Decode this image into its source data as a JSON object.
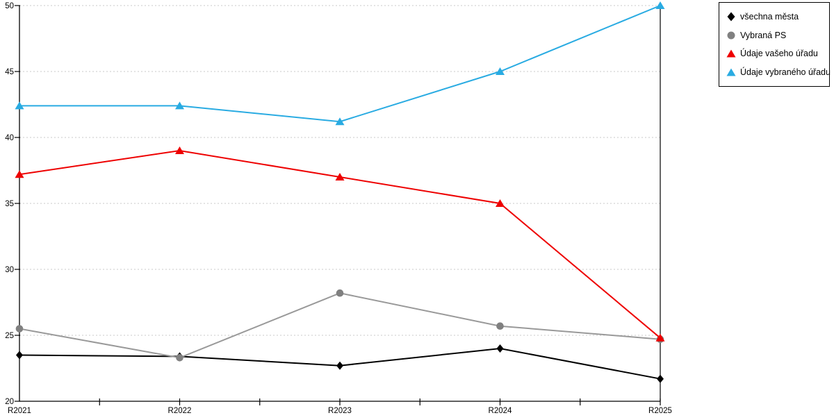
{
  "chart_data": {
    "type": "line",
    "categories": [
      "R2021",
      "R2022",
      "R2023",
      "R2024",
      "R2025"
    ],
    "series": [
      {
        "name": "všechna města",
        "line_color": "#000000",
        "marker": "diamond",
        "marker_color": "#000000",
        "values": [
          23.5,
          23.4,
          22.7,
          24.0,
          21.7
        ]
      },
      {
        "name": "Vybraná PS",
        "line_color": "#999999",
        "marker": "circle",
        "marker_color": "#808080",
        "values": [
          25.5,
          23.3,
          28.2,
          25.7,
          24.7
        ]
      },
      {
        "name": "Údaje vašeho úřadu",
        "line_color": "#ee0000",
        "marker": "triangle",
        "marker_color": "#ee0000",
        "values": [
          37.2,
          39.0,
          37.0,
          35.0,
          24.8
        ]
      },
      {
        "name": "Údaje vybraného úřadu",
        "line_color": "#29abe2",
        "marker": "triangle",
        "marker_color": "#29abe2",
        "values": [
          42.4,
          42.4,
          41.2,
          45.0,
          50.0
        ]
      }
    ],
    "ylim": [
      20,
      50
    ],
    "ytick_step": 5,
    "ytick_labels": [
      "20",
      "25",
      "30",
      "35",
      "40",
      "45",
      "50"
    ],
    "grid": true,
    "grid_style": "dotted",
    "grid_color": "#c9c9c9",
    "axis_color": "#000000",
    "background": "#ffffff",
    "legend_position": "top-right"
  }
}
